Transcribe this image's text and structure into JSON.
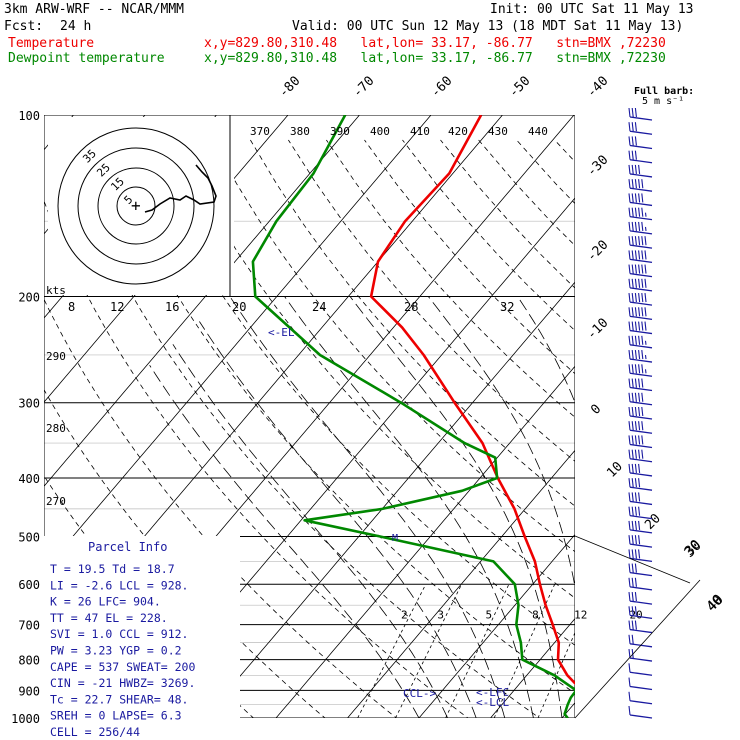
{
  "header": {
    "model": "3km ARW-WRF -- NCAR/MMM",
    "init": "Init: 00 UTC Sat 11 May 13",
    "fcst_label": "Fcst:",
    "fcst_value": "24 h",
    "valid": "Valid: 00 UTC Sun 12 May 13 (18 MDT Sat 11 May 13)",
    "temp_label": "Temperature",
    "temp_info": "x,y=829.80,310.48   lat,lon= 33.17, -86.77   stn=BMX ,72230",
    "dew_label": "Dewpoint temperature",
    "dew_info": "x,y=829.80,310.48   lat,lon= 33.17, -86.77   stn=BMX ,72230"
  },
  "colors": {
    "temperature": "#ee0000",
    "dewpoint": "#008800",
    "barbs": "#1a1aa0",
    "text": "#1a1aa0"
  },
  "chart_data": {
    "type": "line",
    "title": "",
    "pressure_ticks": [
      100,
      200,
      300,
      400,
      500,
      600,
      700,
      800,
      900,
      1000
    ],
    "temp_ticks": [
      -80,
      -70,
      -60,
      -50,
      -40,
      -30,
      -20,
      -10,
      0,
      10,
      20,
      30,
      40
    ],
    "series": [
      {
        "name": "Temperature",
        "color": "#ee0000",
        "points": [
          [
            1000,
            24.3
          ],
          [
            985,
            24.2
          ],
          [
            950,
            23.3
          ],
          [
            925,
            21.5
          ],
          [
            900,
            19.5
          ],
          [
            850,
            15.7
          ],
          [
            800,
            12.5
          ],
          [
            750,
            10.6
          ],
          [
            700,
            7.6
          ],
          [
            650,
            4.3
          ],
          [
            600,
            1.0
          ],
          [
            550,
            -2.4
          ],
          [
            500,
            -6.8
          ],
          [
            450,
            -11.5
          ],
          [
            400,
            -17.5
          ],
          [
            350,
            -23.8
          ],
          [
            300,
            -32.5
          ],
          [
            250,
            -42.5
          ],
          [
            225,
            -48.8
          ],
          [
            200,
            -56.8
          ],
          [
            175,
            -60.0
          ],
          [
            150,
            -61.0
          ],
          [
            125,
            -60.5
          ],
          [
            100,
            -63.0
          ]
        ]
      },
      {
        "name": "Dewpoint temperature",
        "color": "#008800",
        "points": [
          [
            1000,
            20.8
          ],
          [
            985,
            19.9
          ],
          [
            950,
            19.2
          ],
          [
            925,
            18.8
          ],
          [
            900,
            18.7
          ],
          [
            850,
            13.9
          ],
          [
            800,
            7.5
          ],
          [
            750,
            5.3
          ],
          [
            700,
            2.5
          ],
          [
            650,
            0.5
          ],
          [
            600,
            -2.5
          ],
          [
            550,
            -8.2
          ],
          [
            500,
            -27.0
          ],
          [
            470,
            -39.5
          ],
          [
            450,
            -30.0
          ],
          [
            420,
            -21.0
          ],
          [
            400,
            -17.6
          ],
          [
            370,
            -20.3
          ],
          [
            350,
            -26.3
          ],
          [
            300,
            -40.0
          ],
          [
            250,
            -57.0
          ],
          [
            200,
            -73.0
          ],
          [
            175,
            -77.5
          ],
          [
            150,
            -79.0
          ],
          [
            125,
            -79.5
          ],
          [
            100,
            -82.0
          ]
        ]
      }
    ],
    "dry_adiabat_labels": [
      370,
      380,
      390,
      400,
      410,
      420,
      430,
      440,
      290,
      280,
      270
    ],
    "mixing_ratio_labels": [
      2,
      3,
      5,
      8,
      12,
      20
    ],
    "el_label": "<-EL",
    "lcl_label": "<-LFC\n<-LCL",
    "ccl_label": "CCL->",
    "m_label": "M",
    "hodograph": {
      "label": "kts",
      "ring_labels": [
        5,
        15,
        25,
        35
      ],
      "axis_labels": [
        8,
        12,
        16,
        20,
        24,
        28,
        32
      ]
    },
    "barbs_label": "Full barb:",
    "barbs_unit": "5 m s⁻¹",
    "barb_speeds_ms": [
      15,
      15,
      17,
      17,
      21,
      25,
      25,
      28,
      28,
      30,
      30,
      30,
      30,
      30,
      30,
      30,
      28,
      28,
      28,
      25,
      25,
      25,
      25,
      25,
      25,
      20,
      20,
      20,
      20,
      20,
      20,
      20,
      15,
      15,
      15,
      15,
      15,
      10,
      10,
      5,
      5,
      5,
      5
    ],
    "shear_labels": [
      30,
      40
    ],
    "parcel_info": {
      "title": "Parcel Info",
      "rows": [
        "T  =   19.5  Td =  18.7",
        "LI =   -2.6  LCL =  928.",
        "K  =     26  LFC=  904.",
        "TT =     47  EL  =  228.",
        "SVI =   1.0  CCL =  912.",
        "PW =   3.23  YGP =   0.2",
        "CAPE =  537  SWEAT=  200",
        "CIN =   -21  HWBZ= 3269.",
        "Tc =   22.7  SHEAR=  48.",
        "SREH =    0  LAPSE=  6.3",
        "CELL = 256/44"
      ]
    }
  }
}
